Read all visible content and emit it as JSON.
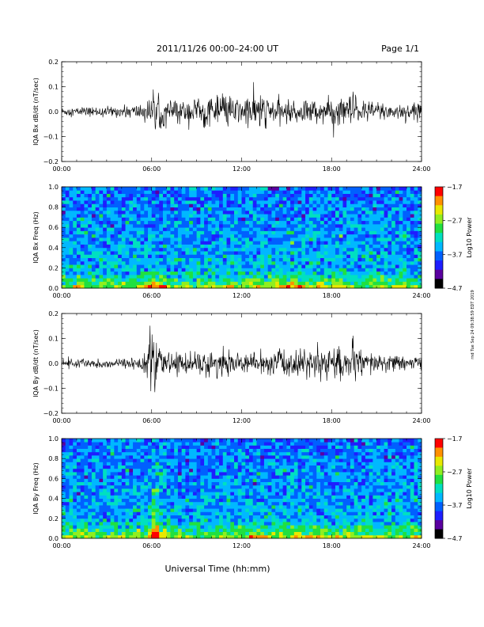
{
  "header": {
    "title": "2011/11/26  00:00–24:00 UT",
    "page": "Page 1/1"
  },
  "x_axis_title": "Universal Time (hh:mm)",
  "side_stamp": "rnd Tue Sep 24 09:38:59 EDT 2019",
  "colors": {
    "colormap": [
      "#000000",
      "#5a00a0",
      "#1e1eff",
      "#0060ff",
      "#00b8ff",
      "#00e0c0",
      "#20e040",
      "#90ee20",
      "#e8e800",
      "#ff9000",
      "#ff0000"
    ]
  },
  "chart_data": [
    {
      "type": "line",
      "ylabel": "IQA Bx dB/dt (nT/sec)",
      "xlim": [
        0,
        24
      ],
      "ylim": [
        -0.2,
        0.2
      ],
      "x_ticks": [
        "00:00",
        "06:00",
        "12:00",
        "18:00",
        "24:00"
      ],
      "y_ticks": [
        "0.2",
        "0.1",
        "0.0",
        "−0.1",
        "−0.2"
      ],
      "envelope": {
        "hours": [
          0,
          2,
          4,
          5,
          5.6,
          6,
          6.3,
          6.6,
          7,
          7.5,
          8,
          9,
          9.5,
          10,
          11,
          11.5,
          12,
          12.5,
          13,
          14,
          15,
          16,
          17,
          18,
          19,
          19.5,
          20,
          21,
          22,
          23,
          24
        ],
        "amplitude": [
          0.02,
          0.022,
          0.025,
          0.035,
          0.05,
          0.06,
          0.09,
          0.07,
          0.07,
          0.05,
          0.05,
          0.07,
          0.08,
          0.06,
          0.08,
          0.07,
          0.06,
          0.08,
          0.09,
          0.06,
          0.05,
          0.05,
          0.06,
          0.06,
          0.07,
          0.1,
          0.05,
          0.05,
          0.04,
          0.04,
          0.035
        ]
      }
    },
    {
      "type": "heatmap",
      "ylabel": "IQA Bx Freq (Hz)",
      "xlim": [
        0,
        24
      ],
      "ylim": [
        0.0,
        1.0
      ],
      "x_ticks": [
        "00:00",
        "06:00",
        "12:00",
        "18:00",
        "24:00"
      ],
      "y_ticks": [
        "1.0",
        "0.8",
        "0.6",
        "0.4",
        "0.2",
        "0.0"
      ],
      "colorbar": {
        "label": "Log10 Power",
        "min": -4.7,
        "max": -1.7,
        "ticks": [
          "−1.7",
          "−2.7",
          "−3.7",
          "−4.7"
        ]
      }
    },
    {
      "type": "line",
      "ylabel": "IQA By dB/dt (nT/sec)",
      "xlim": [
        0,
        24
      ],
      "ylim": [
        -0.2,
        0.2
      ],
      "x_ticks": [
        "00:00",
        "06:00",
        "12:00",
        "18:00",
        "24:00"
      ],
      "y_ticks": [
        "0.2",
        "0.1",
        "0.0",
        "−0.1",
        "−0.2"
      ],
      "envelope": {
        "hours": [
          0,
          2,
          4,
          5,
          5.5,
          6,
          6.1,
          6.3,
          6.6,
          7,
          8,
          9,
          10,
          11,
          12,
          13,
          14,
          14.5,
          15,
          16,
          17,
          17.5,
          18,
          19,
          19.5,
          20,
          21,
          22,
          23,
          24
        ],
        "amplitude": [
          0.02,
          0.02,
          0.022,
          0.03,
          0.05,
          0.14,
          0.19,
          0.1,
          0.06,
          0.04,
          0.05,
          0.06,
          0.06,
          0.06,
          0.04,
          0.05,
          0.05,
          0.08,
          0.06,
          0.06,
          0.07,
          0.1,
          0.07,
          0.07,
          0.1,
          0.05,
          0.05,
          0.04,
          0.03,
          0.03
        ]
      }
    },
    {
      "type": "heatmap",
      "ylabel": "IQA By Freq (Hz)",
      "xlim": [
        0,
        24
      ],
      "ylim": [
        0.0,
        1.0
      ],
      "x_ticks": [
        "00:00",
        "06:00",
        "12:00",
        "18:00",
        "24:00"
      ],
      "y_ticks": [
        "1.0",
        "0.8",
        "0.6",
        "0.4",
        "0.2",
        "0.0"
      ],
      "colorbar": {
        "label": "Log10 Power",
        "min": -4.7,
        "max": -1.7,
        "ticks": [
          "−1.7",
          "−2.7",
          "−3.7",
          "−4.7"
        ]
      }
    }
  ]
}
